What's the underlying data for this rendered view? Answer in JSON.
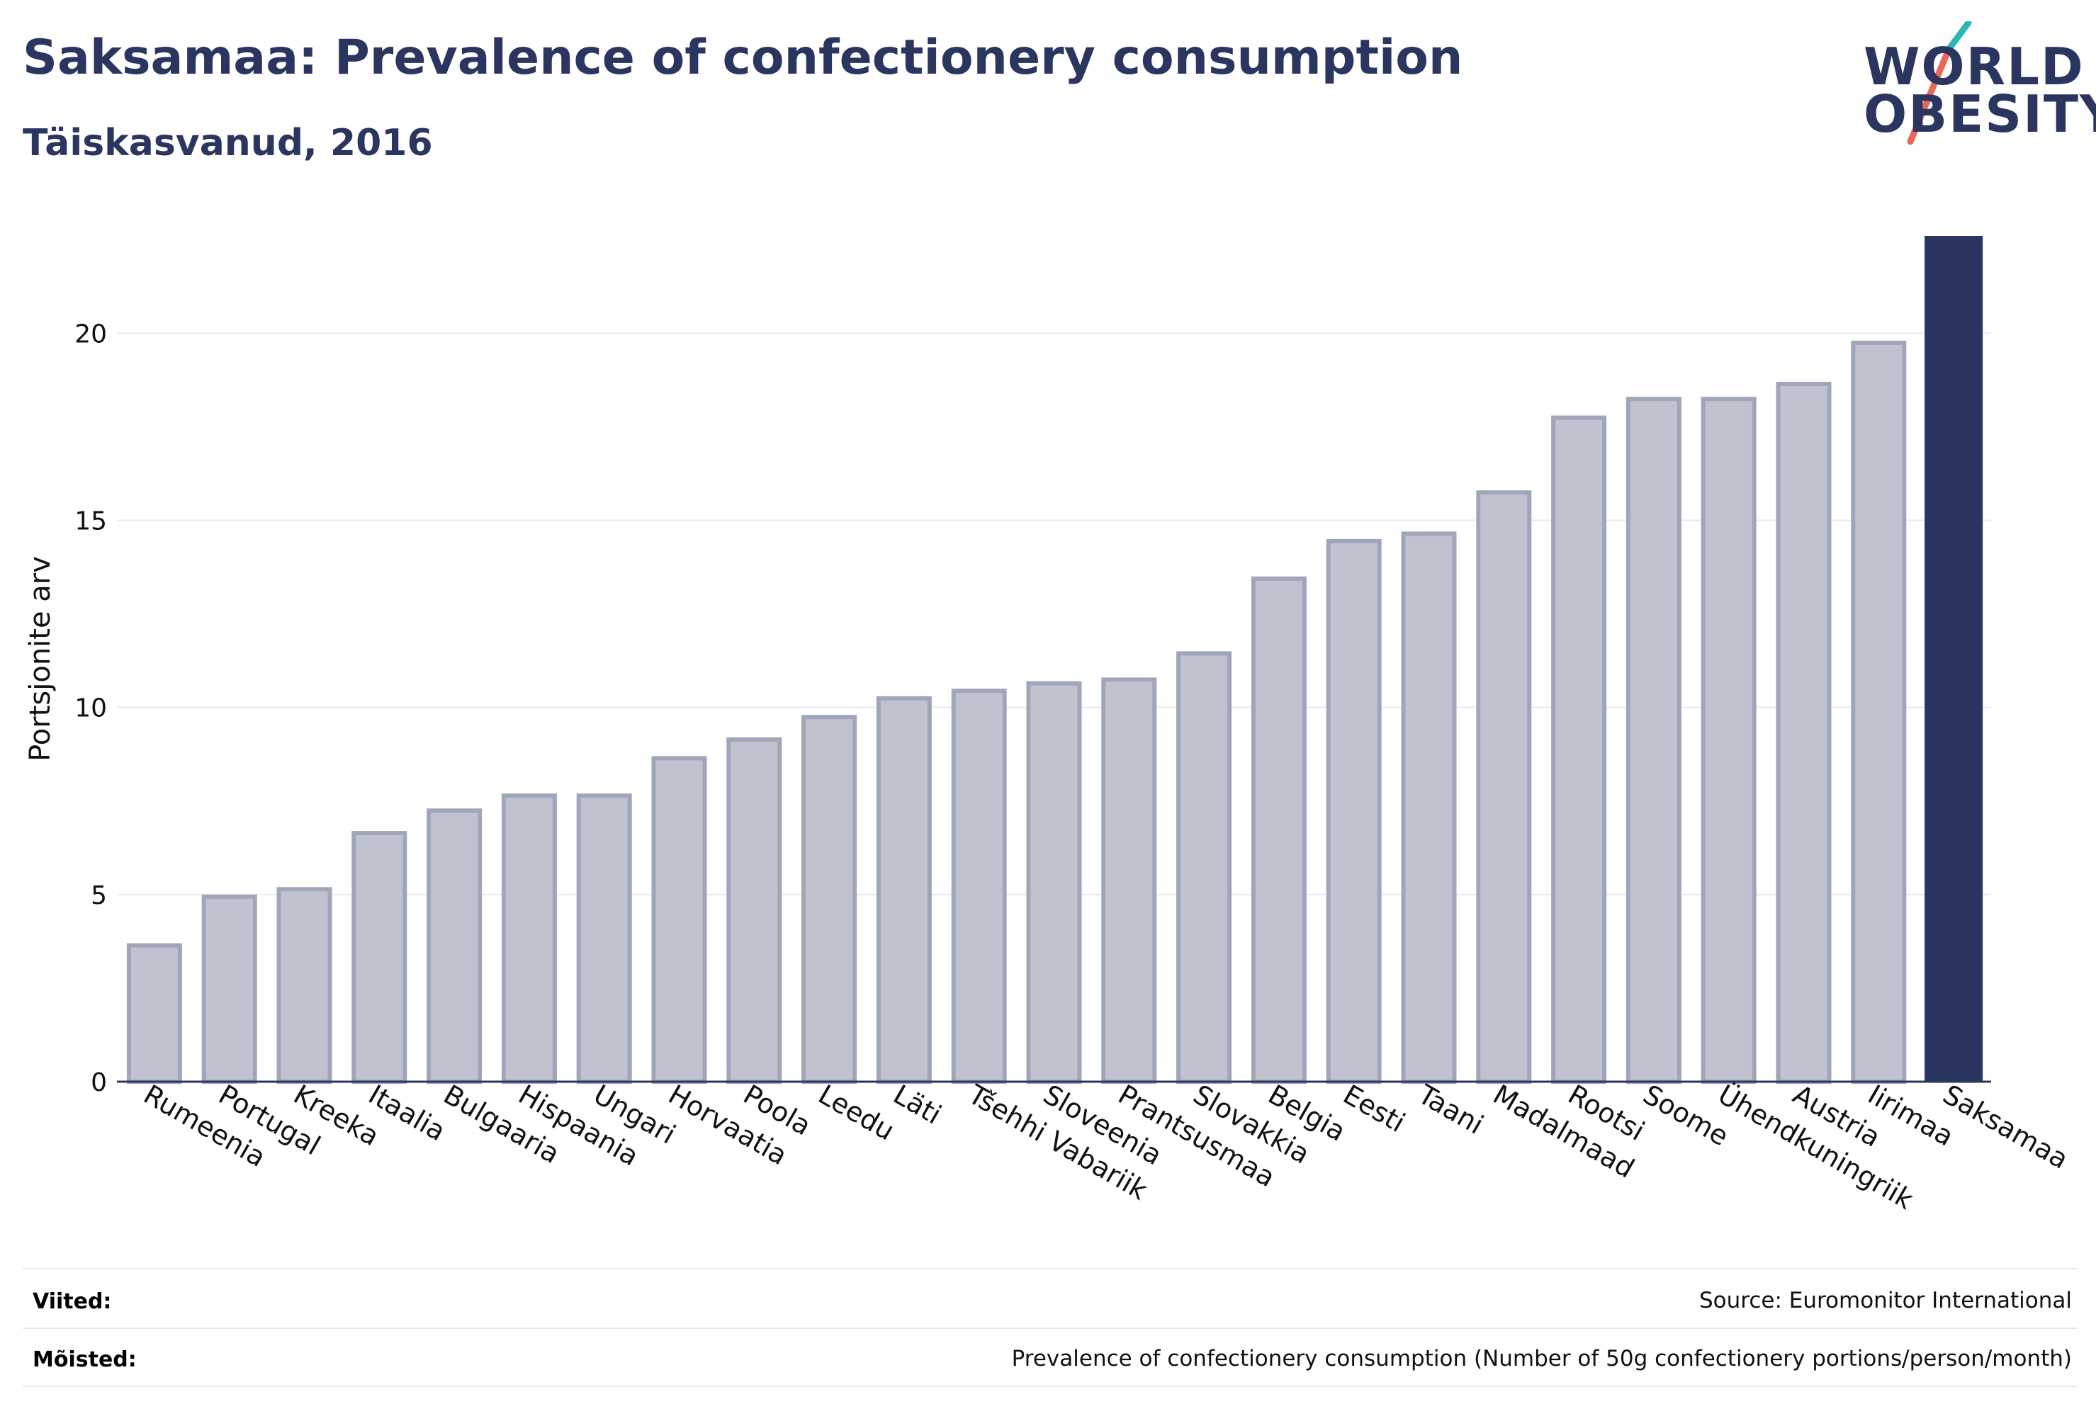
{
  "header": {
    "title": "Saksamaa: Prevalence of confectionery consumption",
    "subtitle": "Täiskasvanud, 2016"
  },
  "logo": {
    "line1": "WORLD",
    "line2": "OBESITY",
    "accent_colors": [
      "#2bb7b3",
      "#e8685a"
    ]
  },
  "chart_data": {
    "type": "bar",
    "ylabel": "Portsjonite arv",
    "xlabel": "",
    "ylim": [
      0,
      22.6
    ],
    "yticks": [
      0,
      5,
      10,
      15,
      20
    ],
    "grid": true,
    "categories": [
      "Rumeenia",
      "Portugal",
      "Kreeka",
      "Itaalia",
      "Bulgaaria",
      "Hispaania",
      "Ungari",
      "Horvaatia",
      "Poola",
      "Leedu",
      "Läti",
      "Tšehhi Vabariik",
      "Sloveenia",
      "Prantsusmaa",
      "Slovakkia",
      "Belgia",
      "Eesti",
      "Taani",
      "Madalmaad",
      "Rootsi",
      "Soome",
      "Ühendkuningriik",
      "Austria",
      "Iirimaa",
      "Saksamaa"
    ],
    "values": [
      3.7,
      5.0,
      5.2,
      6.7,
      7.3,
      7.7,
      7.7,
      8.7,
      9.2,
      9.8,
      10.3,
      10.5,
      10.7,
      10.8,
      11.5,
      13.5,
      14.5,
      14.7,
      15.8,
      17.8,
      18.3,
      18.3,
      18.7,
      19.8,
      22.6
    ],
    "highlight": "Saksamaa",
    "colors": {
      "bar": "#c0c3cf",
      "bar_border": "#a0a6ba",
      "highlight": "#2a3560",
      "grid": "#e8e9ee",
      "axis": "#2a3560"
    }
  },
  "footer": {
    "references_label": "Viited:",
    "references_value": "Source: Euromonitor International",
    "definitions_label": "Mõisted:",
    "definitions_value": "Prevalence of confectionery consumption (Number of 50g confectionery portions/person/month)"
  }
}
